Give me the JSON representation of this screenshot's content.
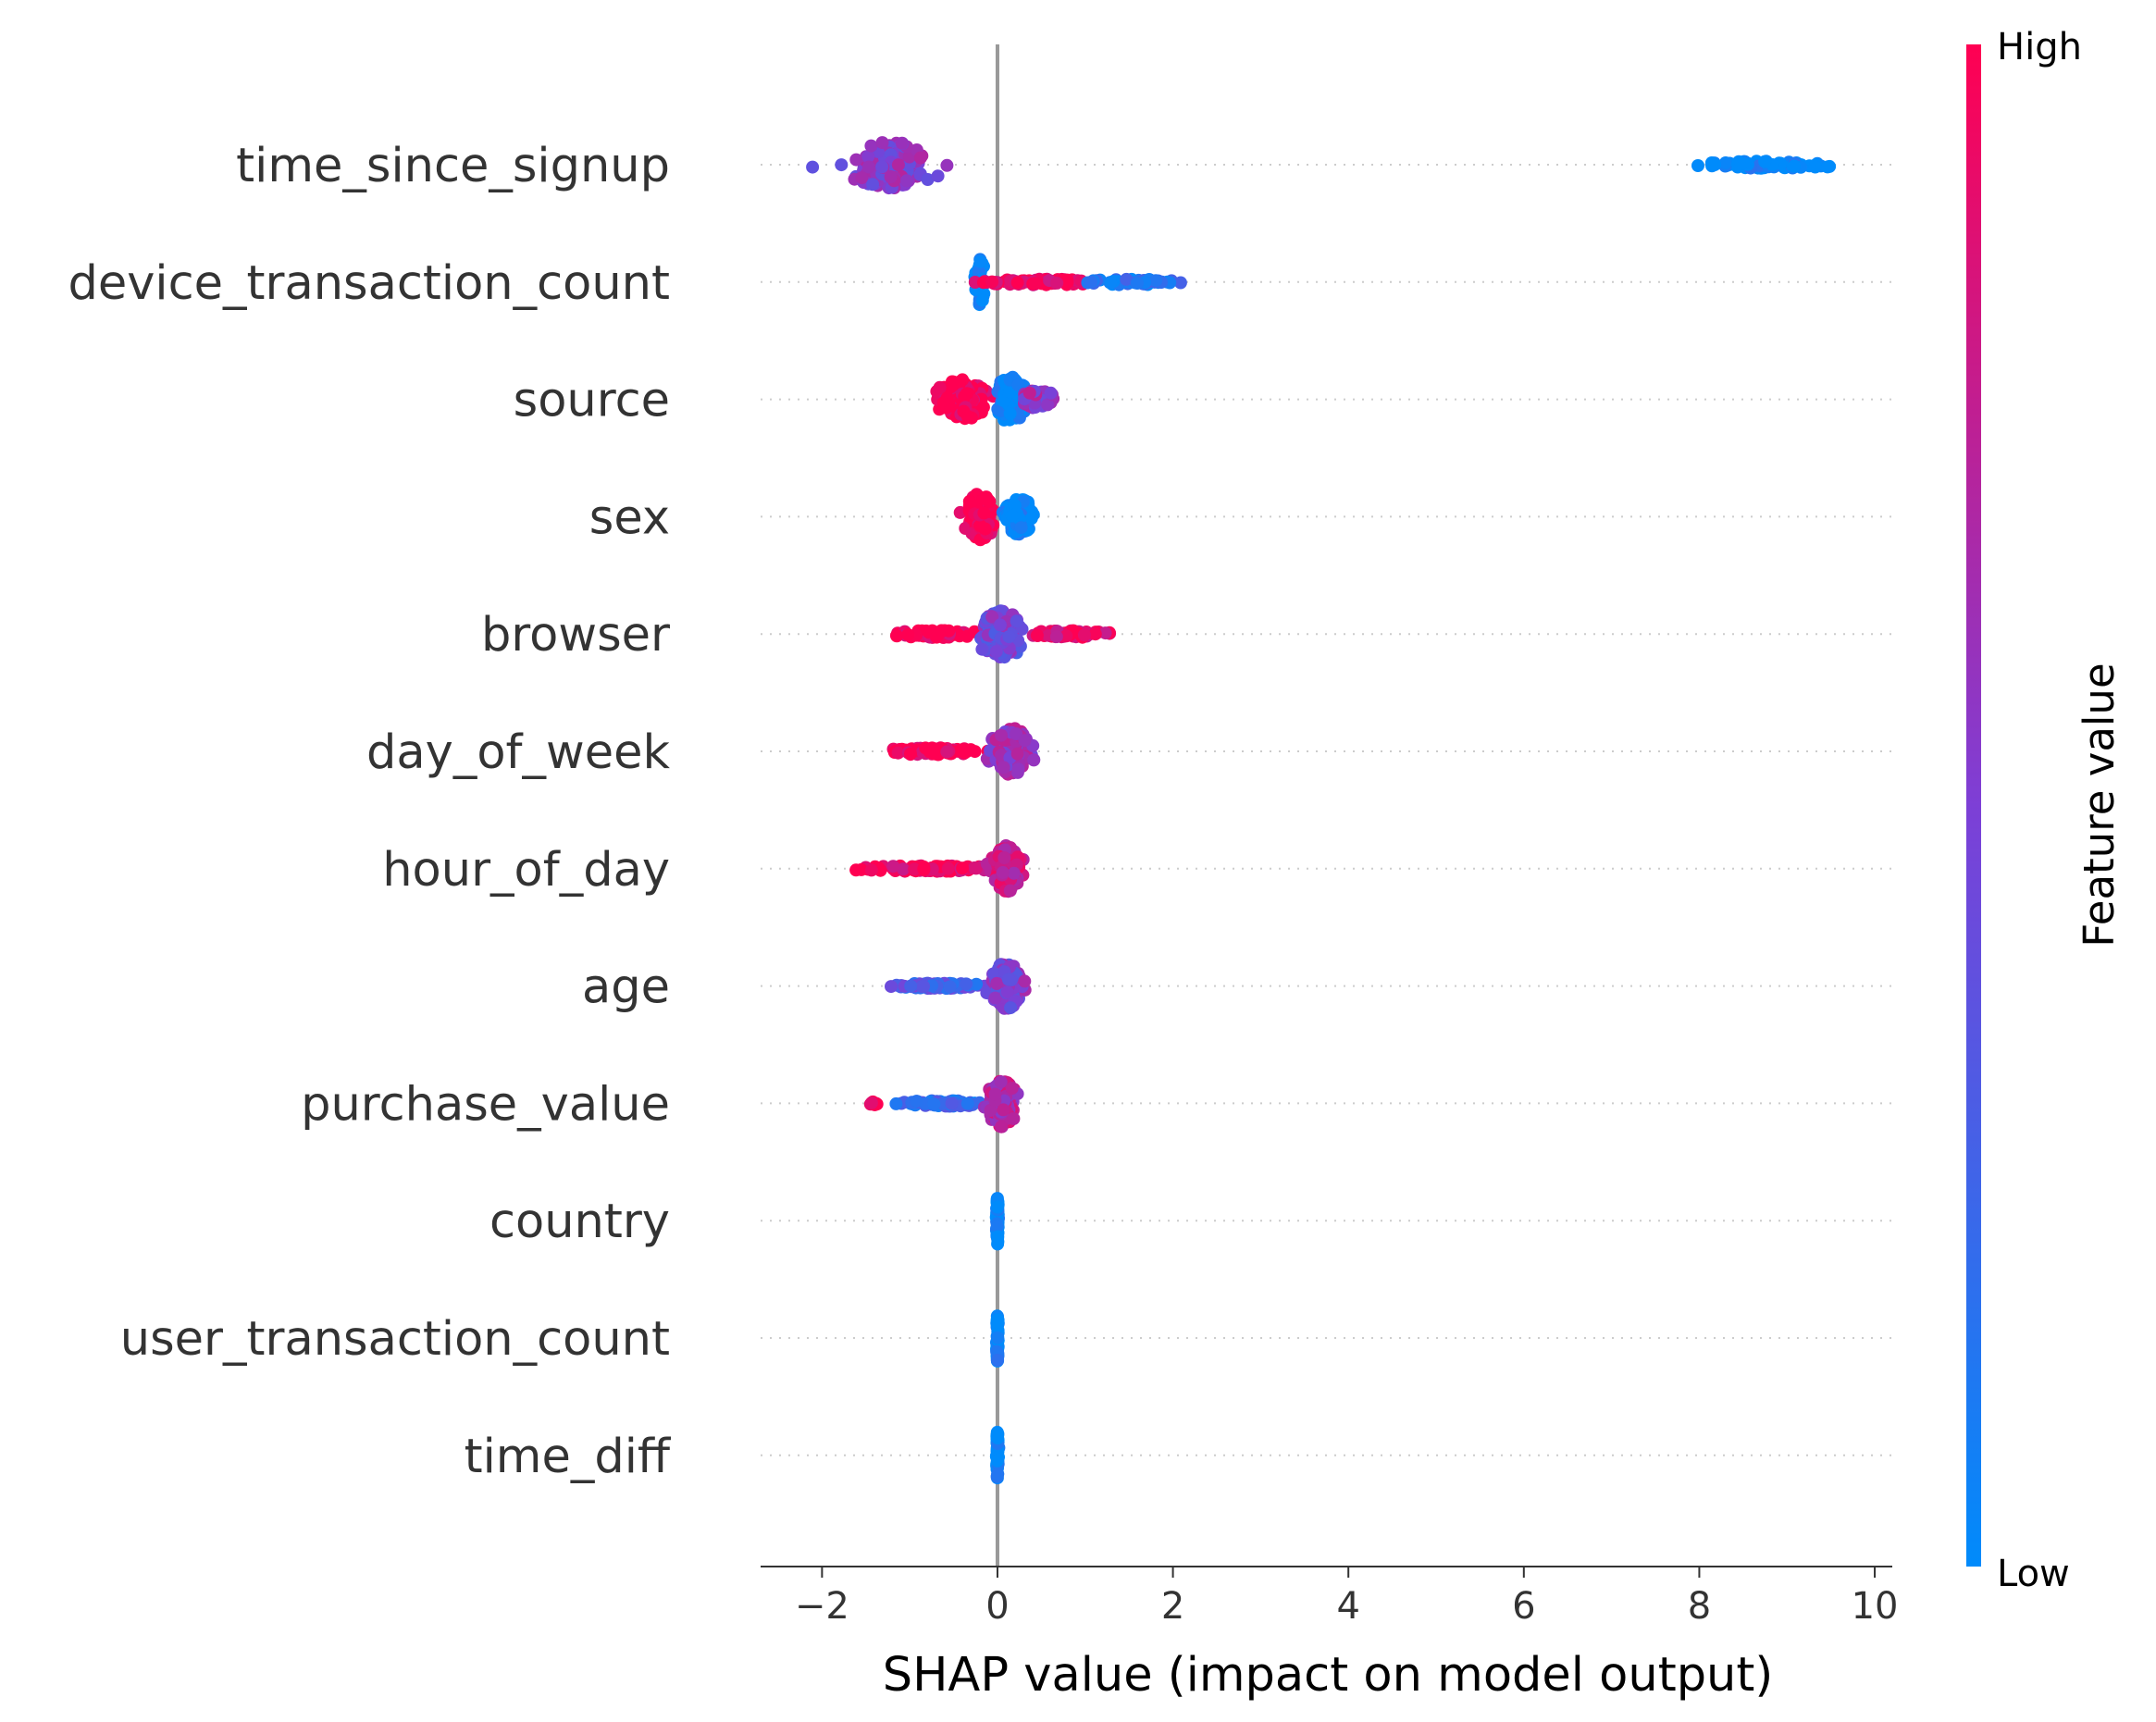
{
  "chart_data": {
    "type": "scatter",
    "subtype": "shap-beeswarm",
    "title": "",
    "xlabel": "SHAP value (impact on model output)",
    "xlim": [
      -2.7,
      10.2
    ],
    "xticks": [
      -2,
      0,
      2,
      4,
      6,
      8,
      10
    ],
    "xtick_labels": [
      "−2",
      "0",
      "2",
      "4",
      "6",
      "8",
      "10"
    ],
    "zero_line": 0,
    "features": [
      {
        "name": "time_since_signup",
        "clusters": [
          {
            "center": -1.2,
            "spread": 0.45,
            "height": 0.4,
            "color_mix": 0.55,
            "density": 140,
            "tail_low": -2.15,
            "tail_high": -0.4
          },
          {
            "center": 8.8,
            "spread": 0.8,
            "height": 0.06,
            "color_mix": 0.0,
            "density": 70,
            "tail_low": 7.95,
            "tail_high": 9.6
          }
        ]
      },
      {
        "name": "device_transaction_count",
        "clusters": [
          {
            "center": -0.2,
            "spread": 0.05,
            "height": 0.4,
            "color_mix": 0.0,
            "density": 40,
            "tail_low": -0.3,
            "tail_high": -0.1
          },
          {
            "center": 0.5,
            "spread": 0.6,
            "height": 0.05,
            "color_mix": 0.95,
            "density": 90,
            "tail_low": -0.65,
            "tail_high": 1.0
          },
          {
            "center": 1.5,
            "spread": 0.5,
            "height": 0.05,
            "color_mix": 0.1,
            "density": 50,
            "tail_low": 0.9,
            "tail_high": 2.1
          }
        ]
      },
      {
        "name": "source",
        "clusters": [
          {
            "center": -0.4,
            "spread": 0.25,
            "height": 0.35,
            "color_mix": 1.0,
            "density": 130,
            "tail_low": -0.8,
            "tail_high": -0.05
          },
          {
            "center": 0.15,
            "spread": 0.15,
            "height": 0.4,
            "color_mix": 0.0,
            "density": 100,
            "tail_low": -0.05,
            "tail_high": 0.35
          },
          {
            "center": 0.45,
            "spread": 0.2,
            "height": 0.15,
            "color_mix": 0.6,
            "density": 50,
            "tail_low": 0.3,
            "tail_high": 0.75
          }
        ]
      },
      {
        "name": "sex",
        "clusters": [
          {
            "center": -0.2,
            "spread": 0.15,
            "height": 0.4,
            "color_mix": 1.0,
            "density": 130,
            "tail_low": -0.45,
            "tail_high": -0.05
          },
          {
            "center": 0.25,
            "spread": 0.18,
            "height": 0.3,
            "color_mix": 0.0,
            "density": 110,
            "tail_low": 0.05,
            "tail_high": 0.55
          }
        ]
      },
      {
        "name": "browser",
        "clusters": [
          {
            "center": -0.7,
            "spread": 0.5,
            "height": 0.06,
            "color_mix": 1.0,
            "density": 80,
            "tail_low": -1.15,
            "tail_high": -0.2
          },
          {
            "center": 0.05,
            "spread": 0.25,
            "height": 0.4,
            "color_mix": 0.45,
            "density": 150,
            "tail_low": -0.2,
            "tail_high": 0.45
          },
          {
            "center": 0.8,
            "spread": 0.45,
            "height": 0.06,
            "color_mix": 0.9,
            "density": 70,
            "tail_low": 0.4,
            "tail_high": 1.3
          }
        ]
      },
      {
        "name": "day_of_week",
        "clusters": [
          {
            "center": -0.7,
            "spread": 0.55,
            "height": 0.06,
            "color_mix": 1.0,
            "density": 90,
            "tail_low": -1.3,
            "tail_high": -0.1
          },
          {
            "center": 0.15,
            "spread": 0.2,
            "height": 0.4,
            "color_mix": 0.6,
            "density": 150,
            "tail_low": -0.2,
            "tail_high": 0.45
          }
        ]
      },
      {
        "name": "hour_of_day",
        "clusters": [
          {
            "center": -0.8,
            "spread": 0.7,
            "height": 0.05,
            "color_mix": 0.95,
            "density": 100,
            "tail_low": -1.65,
            "tail_high": -0.05
          },
          {
            "center": 0.1,
            "spread": 0.15,
            "height": 0.4,
            "color_mix": 0.8,
            "density": 140,
            "tail_low": -0.15,
            "tail_high": 0.35
          }
        ]
      },
      {
        "name": "age",
        "clusters": [
          {
            "center": -0.7,
            "spread": 0.5,
            "height": 0.05,
            "color_mix": 0.3,
            "density": 80,
            "tail_low": -1.25,
            "tail_high": -0.1
          },
          {
            "center": 0.1,
            "spread": 0.15,
            "height": 0.4,
            "color_mix": 0.5,
            "density": 150,
            "tail_low": -0.15,
            "tail_high": 0.35
          }
        ]
      },
      {
        "name": "purchase_value",
        "clusters": [
          {
            "center": -1.4,
            "spread": 0.05,
            "height": 0.03,
            "color_mix": 1.0,
            "density": 8,
            "tail_low": -1.5,
            "tail_high": -1.35
          },
          {
            "center": -0.6,
            "spread": 0.45,
            "height": 0.05,
            "color_mix": 0.2,
            "density": 70,
            "tail_low": -1.2,
            "tail_high": -0.1
          },
          {
            "center": 0.05,
            "spread": 0.15,
            "height": 0.4,
            "color_mix": 0.7,
            "density": 130,
            "tail_low": -0.2,
            "tail_high": 0.3
          }
        ]
      },
      {
        "name": "country",
        "clusters": [
          {
            "center": 0.0,
            "spread": 0.01,
            "height": 0.4,
            "color_mix": 0.0,
            "density": 60,
            "tail_low": -0.03,
            "tail_high": 0.03
          }
        ]
      },
      {
        "name": "user_transaction_count",
        "clusters": [
          {
            "center": 0.0,
            "spread": 0.01,
            "height": 0.4,
            "color_mix": 0.0,
            "density": 60,
            "tail_low": -0.03,
            "tail_high": 0.03
          }
        ]
      },
      {
        "name": "time_diff",
        "clusters": [
          {
            "center": 0.0,
            "spread": 0.01,
            "height": 0.4,
            "color_mix": 0.0,
            "density": 60,
            "tail_low": -0.03,
            "tail_high": 0.03
          }
        ]
      }
    ],
    "colorbar": {
      "title": "Feature value",
      "high_label": "High",
      "low_label": "Low",
      "high_color": "#ff0052",
      "low_color": "#008bfb"
    },
    "grid": "dotted horizontal per feature",
    "legend": "colorbar right"
  }
}
